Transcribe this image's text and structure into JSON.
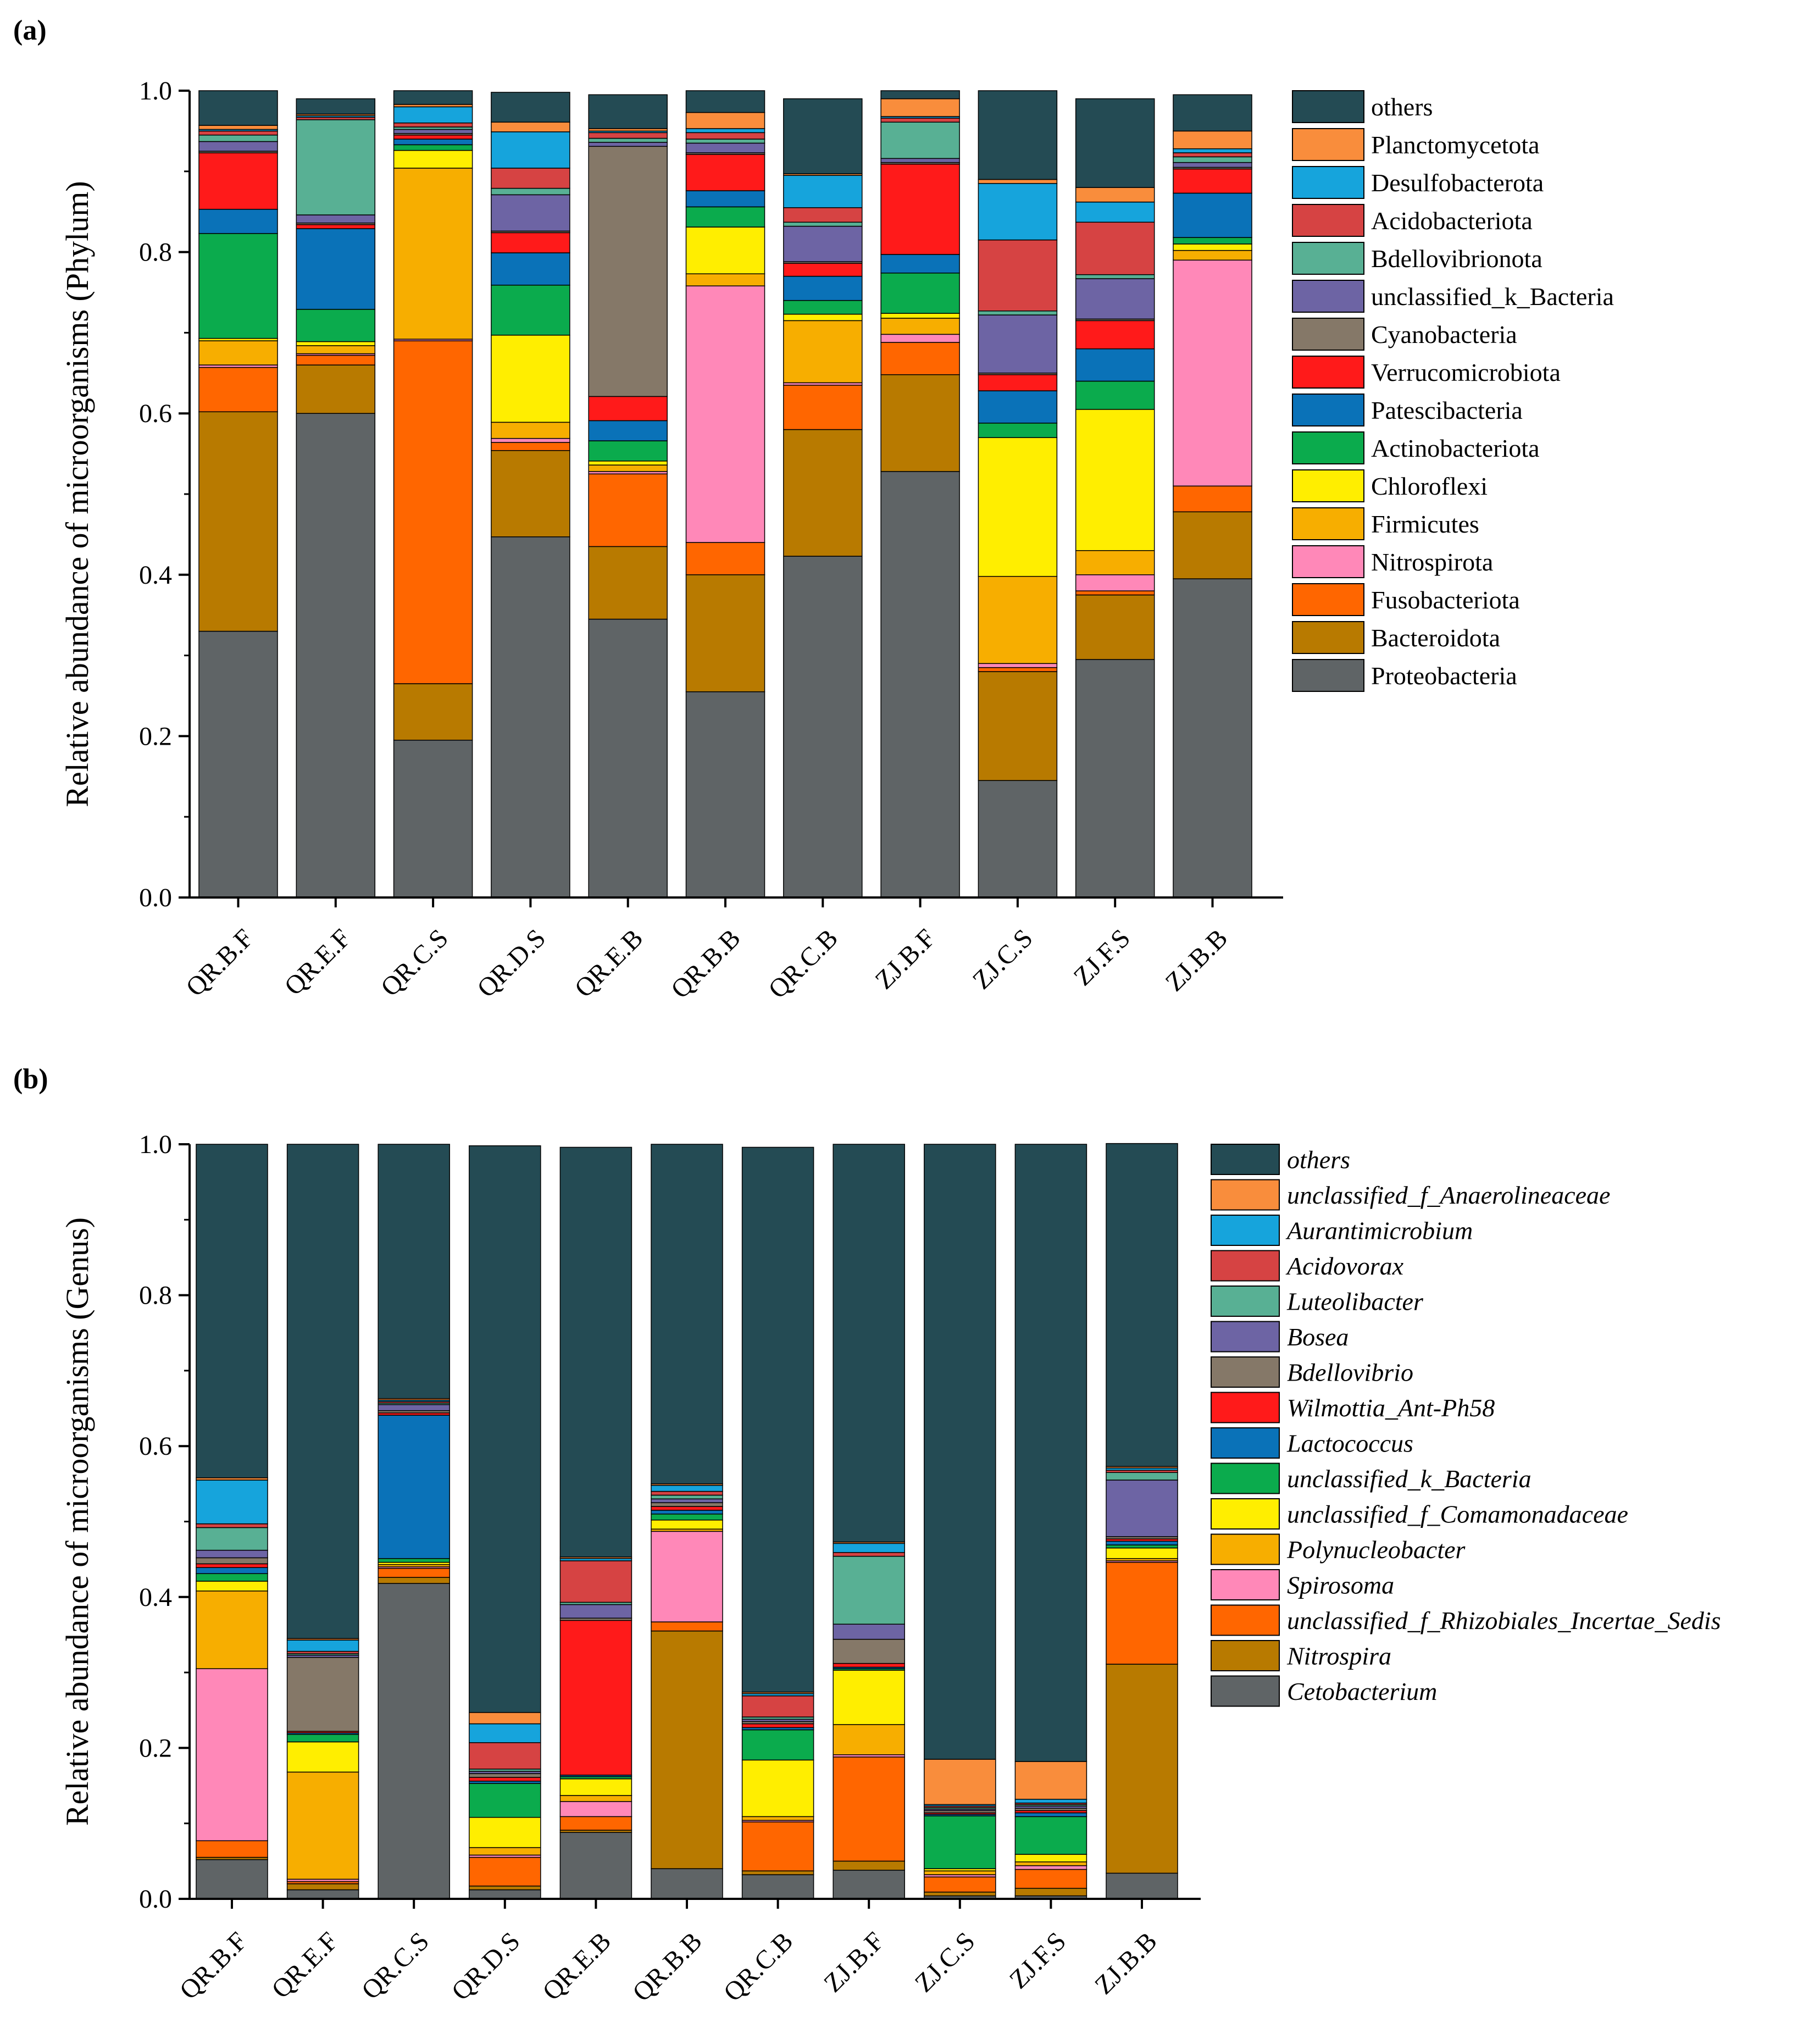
{
  "chart_data": [
    {
      "panel": "(a)",
      "type": "bar",
      "stacked": true,
      "ylabel": "Relative abundance of microorganisms (Phylum)",
      "xlabel": "",
      "ylim": [
        0,
        1.0
      ],
      "yticks": [
        "0.0",
        "0.2",
        "0.4",
        "0.6",
        "0.8",
        "1.0"
      ],
      "categories": [
        "QR.B.F",
        "QR.E.F",
        "QR.C.S",
        "QR.D.S",
        "QR.E.B",
        "QR.B.B",
        "QR.C.B",
        "ZJ.B.F",
        "ZJ.C.S",
        "ZJ.F.S",
        "ZJ.B.B"
      ],
      "legend_italic": false,
      "series": [
        {
          "name": "Proteobacteria",
          "color": "#5f6466",
          "values": [
            0.33,
            0.6,
            0.195,
            0.447,
            0.345,
            0.255,
            0.423,
            0.528,
            0.145,
            0.295,
            0.395
          ]
        },
        {
          "name": "Bacteroidota",
          "color": "#b87a00",
          "values": [
            0.272,
            0.06,
            0.07,
            0.107,
            0.09,
            0.145,
            0.157,
            0.12,
            0.135,
            0.08,
            0.083
          ]
        },
        {
          "name": "Fusobacteriota",
          "color": "#ff6600",
          "values": [
            0.055,
            0.012,
            0.425,
            0.01,
            0.09,
            0.04,
            0.055,
            0.04,
            0.005,
            0.005,
            0.032
          ]
        },
        {
          "name": "Nitrospirota",
          "color": "#ff88b8",
          "values": [
            0.003,
            0.002,
            0.002,
            0.005,
            0.003,
            0.318,
            0.003,
            0.01,
            0.005,
            0.02,
            0.28
          ]
        },
        {
          "name": "Firmicutes",
          "color": "#f7ae00",
          "values": [
            0.03,
            0.01,
            0.212,
            0.02,
            0.008,
            0.015,
            0.077,
            0.02,
            0.108,
            0.03,
            0.012
          ]
        },
        {
          "name": "Chloroflexi",
          "color": "#ffee00",
          "values": [
            0.003,
            0.005,
            0.022,
            0.108,
            0.005,
            0.058,
            0.008,
            0.006,
            0.172,
            0.175,
            0.008
          ]
        },
        {
          "name": "Actinobacteriota",
          "color": "#0bab4d",
          "values": [
            0.13,
            0.04,
            0.007,
            0.062,
            0.025,
            0.025,
            0.017,
            0.05,
            0.018,
            0.035,
            0.008
          ]
        },
        {
          "name": "Patescibacteria",
          "color": "#0a72b8",
          "values": [
            0.03,
            0.1,
            0.007,
            0.04,
            0.025,
            0.02,
            0.03,
            0.023,
            0.04,
            0.04,
            0.055
          ]
        },
        {
          "name": "Verrucomicrobiota",
          "color": "#ff1a1a",
          "values": [
            0.07,
            0.005,
            0.005,
            0.025,
            0.03,
            0.045,
            0.016,
            0.112,
            0.02,
            0.035,
            0.03
          ]
        },
        {
          "name": "Cyanobacteria",
          "color": "#857868",
          "values": [
            0.002,
            0.002,
            0.002,
            0.002,
            0.31,
            0.002,
            0.002,
            0.002,
            0.002,
            0.002,
            0.002
          ]
        },
        {
          "name": "unclassified_k_Bacteria",
          "color": "#6d64a4",
          "values": [
            0.012,
            0.01,
            0.005,
            0.045,
            0.005,
            0.012,
            0.044,
            0.005,
            0.072,
            0.05,
            0.006
          ]
        },
        {
          "name": "Bdellovibrionota",
          "color": "#58b094",
          "values": [
            0.008,
            0.118,
            0.003,
            0.008,
            0.005,
            0.005,
            0.005,
            0.045,
            0.005,
            0.005,
            0.007
          ]
        },
        {
          "name": "Acidobacteriota",
          "color": "#d64343",
          "values": [
            0.005,
            0.003,
            0.005,
            0.025,
            0.007,
            0.008,
            0.018,
            0.005,
            0.088,
            0.065,
            0.005
          ]
        },
        {
          "name": "Desulfobacterota",
          "color": "#16a4dc",
          "values": [
            0.002,
            0.002,
            0.02,
            0.045,
            0.002,
            0.005,
            0.04,
            0.002,
            0.07,
            0.025,
            0.005
          ]
        },
        {
          "name": "Planctomycetota",
          "color": "#f98d3c",
          "values": [
            0.005,
            0.002,
            0.003,
            0.012,
            0.003,
            0.02,
            0.002,
            0.022,
            0.005,
            0.018,
            0.022
          ]
        },
        {
          "name": "others",
          "color": "#244b54",
          "values": [
            0.043,
            0.019,
            0.017,
            0.037,
            0.042,
            0.027,
            0.093,
            0.01,
            0.11,
            0.11,
            0.045
          ]
        }
      ]
    },
    {
      "panel": "(b)",
      "type": "bar",
      "stacked": true,
      "ylabel": "Relative abundance of microorganisms (Genus)",
      "xlabel": "",
      "ylim": [
        0,
        1.0
      ],
      "yticks": [
        "0.0",
        "0.2",
        "0.4",
        "0.6",
        "0.8",
        "1.0"
      ],
      "categories": [
        "QR.B.F",
        "QR.E.F",
        "QR.C.S",
        "QR.D.S",
        "QR.E.B",
        "QR.B.B",
        "QR.C.B",
        "ZJ.B.F",
        "ZJ.C.S",
        "ZJ.F.S",
        "ZJ.B.B"
      ],
      "legend_italic": true,
      "series": [
        {
          "name": "Cetobacterium",
          "color": "#5f6466",
          "values": [
            0.052,
            0.012,
            0.418,
            0.012,
            0.088,
            0.04,
            0.032,
            0.038,
            0.004,
            0.004,
            0.034
          ]
        },
        {
          "name": "Nitrospira",
          "color": "#b87a00",
          "values": [
            0.003,
            0.008,
            0.008,
            0.005,
            0.003,
            0.315,
            0.005,
            0.012,
            0.005,
            0.01,
            0.277
          ]
        },
        {
          "name": "unclassified_f_Rhizobiales_Incertae_Sedis",
          "color": "#ff6600",
          "values": [
            0.022,
            0.003,
            0.012,
            0.038,
            0.018,
            0.012,
            0.065,
            0.138,
            0.02,
            0.025,
            0.135
          ]
        },
        {
          "name": "Spirosoma",
          "color": "#ff88b8",
          "values": [
            0.228,
            0.003,
            0.002,
            0.003,
            0.02,
            0.12,
            0.002,
            0.003,
            0.003,
            0.005,
            0.002
          ]
        },
        {
          "name": "Polynucleobacter",
          "color": "#f7ae00",
          "values": [
            0.103,
            0.142,
            0.003,
            0.01,
            0.008,
            0.003,
            0.005,
            0.04,
            0.005,
            0.005,
            0.003
          ]
        },
        {
          "name": "unclassified_f_Comamonadaceae",
          "color": "#ffee00",
          "values": [
            0.013,
            0.04,
            0.003,
            0.04,
            0.022,
            0.012,
            0.075,
            0.072,
            0.003,
            0.01,
            0.014
          ]
        },
        {
          "name": "unclassified_k_Bacteria",
          "color": "#0bab4d",
          "values": [
            0.01,
            0.01,
            0.005,
            0.045,
            0.003,
            0.008,
            0.04,
            0.002,
            0.07,
            0.05,
            0.004
          ]
        },
        {
          "name": "Lactococcus",
          "color": "#0a72b8",
          "values": [
            0.008,
            0.002,
            0.19,
            0.003,
            0.002,
            0.005,
            0.003,
            0.002,
            0.002,
            0.005,
            0.005
          ]
        },
        {
          "name": "Wilmottia_Ant-Ph58",
          "color": "#ff1a1a",
          "values": [
            0.005,
            0.002,
            0.003,
            0.005,
            0.205,
            0.005,
            0.005,
            0.005,
            0.002,
            0.003,
            0.003
          ]
        },
        {
          "name": "Bdellovibrio",
          "color": "#857868",
          "values": [
            0.008,
            0.098,
            0.003,
            0.005,
            0.003,
            0.005,
            0.003,
            0.032,
            0.003,
            0.003,
            0.003
          ]
        },
        {
          "name": "Bosea",
          "color": "#6d64a4",
          "values": [
            0.01,
            0.003,
            0.008,
            0.003,
            0.018,
            0.005,
            0.003,
            0.02,
            0.002,
            0.003,
            0.075
          ]
        },
        {
          "name": "Luteolibacter",
          "color": "#58b094",
          "values": [
            0.03,
            0.002,
            0.002,
            0.003,
            0.003,
            0.005,
            0.003,
            0.09,
            0.002,
            0.002,
            0.01
          ]
        },
        {
          "name": "Acidovorax",
          "color": "#d64343",
          "values": [
            0.005,
            0.003,
            0.002,
            0.035,
            0.055,
            0.005,
            0.028,
            0.005,
            0.002,
            0.002,
            0.003
          ]
        },
        {
          "name": "Aurantimicrobium",
          "color": "#16a4dc",
          "values": [
            0.058,
            0.015,
            0.002,
            0.025,
            0.003,
            0.008,
            0.003,
            0.012,
            0.002,
            0.005,
            0.003
          ]
        },
        {
          "name": "unclassified_f_Anaerolineaceae",
          "color": "#f98d3c",
          "values": [
            0.003,
            0.002,
            0.002,
            0.015,
            0.002,
            0.002,
            0.002,
            0.002,
            0.06,
            0.05,
            0.002
          ]
        },
        {
          "name": "others",
          "color": "#244b54",
          "values": [
            0.442,
            0.655,
            0.337,
            0.751,
            0.543,
            0.45,
            0.722,
            0.527,
            0.815,
            0.818,
            0.428
          ]
        }
      ]
    }
  ]
}
